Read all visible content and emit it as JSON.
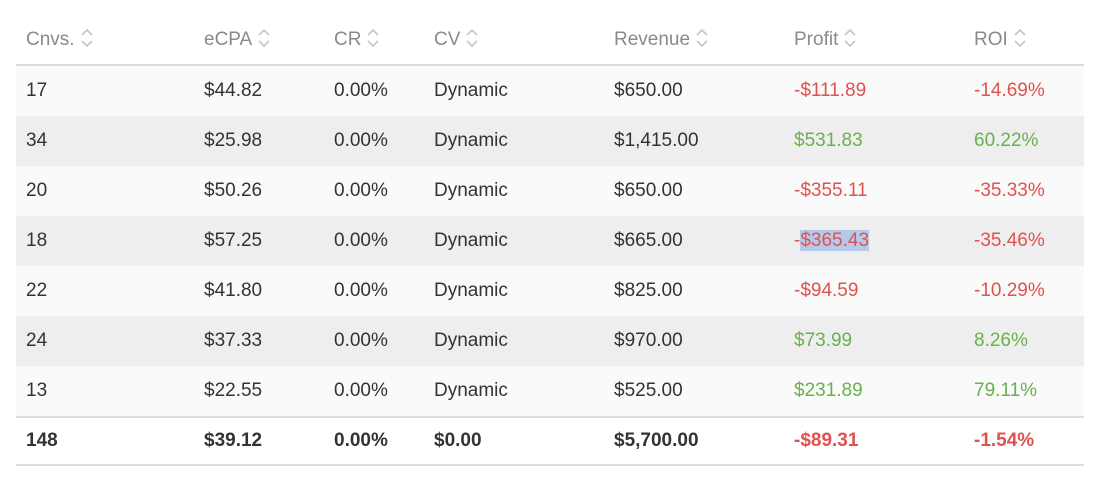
{
  "table": {
    "columns": [
      {
        "key": "cnvs",
        "label": "Cnvs."
      },
      {
        "key": "ecpa",
        "label": "eCPA"
      },
      {
        "key": "cr",
        "label": "CR"
      },
      {
        "key": "cv",
        "label": "CV"
      },
      {
        "key": "revenue",
        "label": "Revenue"
      },
      {
        "key": "profit",
        "label": "Profit"
      },
      {
        "key": "roi",
        "label": "ROI"
      }
    ],
    "rows": [
      {
        "cnvs": "17",
        "ecpa": "$44.82",
        "cr": "0.00%",
        "cv": "Dynamic",
        "revenue": "$650.00",
        "profit": "-$111.89",
        "roi": "-14.69%"
      },
      {
        "cnvs": "34",
        "ecpa": "$25.98",
        "cr": "0.00%",
        "cv": "Dynamic",
        "revenue": "$1,415.00",
        "profit": "$531.83",
        "roi": "60.22%"
      },
      {
        "cnvs": "20",
        "ecpa": "$50.26",
        "cr": "0.00%",
        "cv": "Dynamic",
        "revenue": "$650.00",
        "profit": "-$355.11",
        "roi": "-35.33%"
      },
      {
        "cnvs": "18",
        "ecpa": "$57.25",
        "cr": "0.00%",
        "cv": "Dynamic",
        "revenue": "$665.00",
        "profit_sign": "-",
        "profit_selected": "$365.43",
        "roi": "-35.46%"
      },
      {
        "cnvs": "22",
        "ecpa": "$41.80",
        "cr": "0.00%",
        "cv": "Dynamic",
        "revenue": "$825.00",
        "profit": "-$94.59",
        "roi": "-10.29%"
      },
      {
        "cnvs": "24",
        "ecpa": "$37.33",
        "cr": "0.00%",
        "cv": "Dynamic",
        "revenue": "$970.00",
        "profit": "$73.99",
        "roi": "8.26%"
      },
      {
        "cnvs": "13",
        "ecpa": "$22.55",
        "cr": "0.00%",
        "cv": "Dynamic",
        "revenue": "$525.00",
        "profit": "$231.89",
        "roi": "79.11%"
      }
    ],
    "totals": {
      "cnvs": "148",
      "ecpa": "$39.12",
      "cr": "0.00%",
      "cv": "$0.00",
      "revenue": "$5,700.00",
      "profit": "-$89.31",
      "roi": "-1.54%"
    },
    "colors": {
      "negative": "#e0524e",
      "positive": "#6ab04c",
      "header_text": "#8a8a8a",
      "selection": "#b7c9ea"
    },
    "sort_icon": "sort-updown-icon"
  }
}
